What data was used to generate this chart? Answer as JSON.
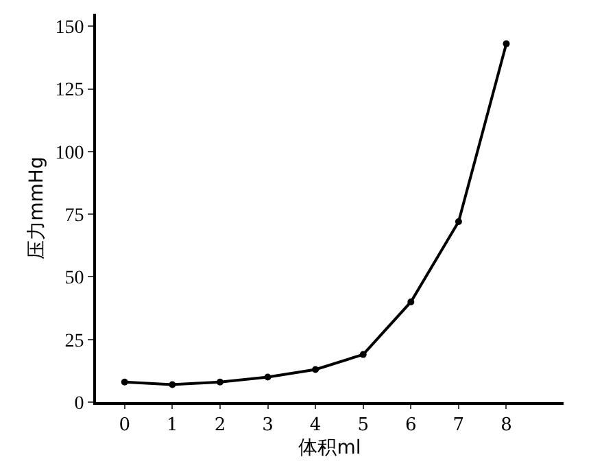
{
  "chart_data": {
    "type": "line",
    "xlabel": "体积ml",
    "ylabel": "压力mmHg",
    "x": [
      0,
      1,
      2,
      3,
      4,
      5,
      6,
      7,
      8
    ],
    "series": [
      {
        "color": "#000000",
        "values": [
          8,
          7,
          8,
          10,
          13,
          19,
          40,
          72,
          143
        ]
      }
    ],
    "xlim": [
      -0.6,
      9.2
    ],
    "xticks": [
      0,
      1,
      2,
      3,
      4,
      5,
      6,
      7,
      8
    ],
    "ylim": [
      0,
      155
    ],
    "yticks": [
      0,
      25,
      50,
      75,
      100,
      125,
      150
    ],
    "grid": false,
    "marker": "circle",
    "line_style": "solid"
  }
}
